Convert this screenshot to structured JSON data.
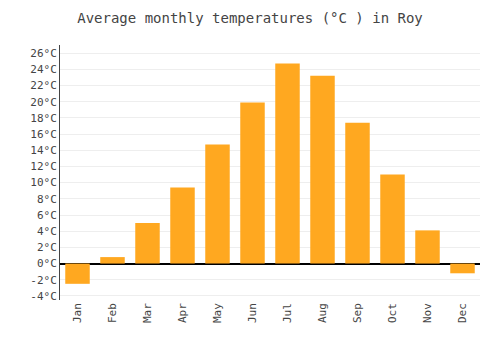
{
  "chart_data": {
    "type": "bar",
    "title": "Average monthly temperatures (°C ) in Roy",
    "categories": [
      "Jan",
      "Feb",
      "Mar",
      "Apr",
      "May",
      "Jun",
      "Jul",
      "Aug",
      "Sep",
      "Oct",
      "Nov",
      "Dec"
    ],
    "values": [
      -2.5,
      0.8,
      5.0,
      9.4,
      14.7,
      19.9,
      24.7,
      23.2,
      17.4,
      11.0,
      4.1,
      -1.2
    ],
    "color": "#FFA820",
    "ylim": [
      -4.5,
      27
    ],
    "yticks": [
      {
        "value": -4,
        "label": "-4°C"
      },
      {
        "value": -2,
        "label": "-2°C"
      },
      {
        "value": 0,
        "label": "0°C"
      },
      {
        "value": 2,
        "label": "2°C"
      },
      {
        "value": 4,
        "label": "4°C"
      },
      {
        "value": 6,
        "label": "6°C"
      },
      {
        "value": 8,
        "label": "8°C"
      },
      {
        "value": 10,
        "label": "10°C"
      },
      {
        "value": 12,
        "label": "12°C"
      },
      {
        "value": 14,
        "label": "14°C"
      },
      {
        "value": 16,
        "label": "16°C"
      },
      {
        "value": 18,
        "label": "18°C"
      },
      {
        "value": 20,
        "label": "20°C"
      },
      {
        "value": 22,
        "label": "22°C"
      },
      {
        "value": 24,
        "label": "24°C"
      },
      {
        "value": 26,
        "label": "26°C"
      }
    ],
    "grid": true
  }
}
